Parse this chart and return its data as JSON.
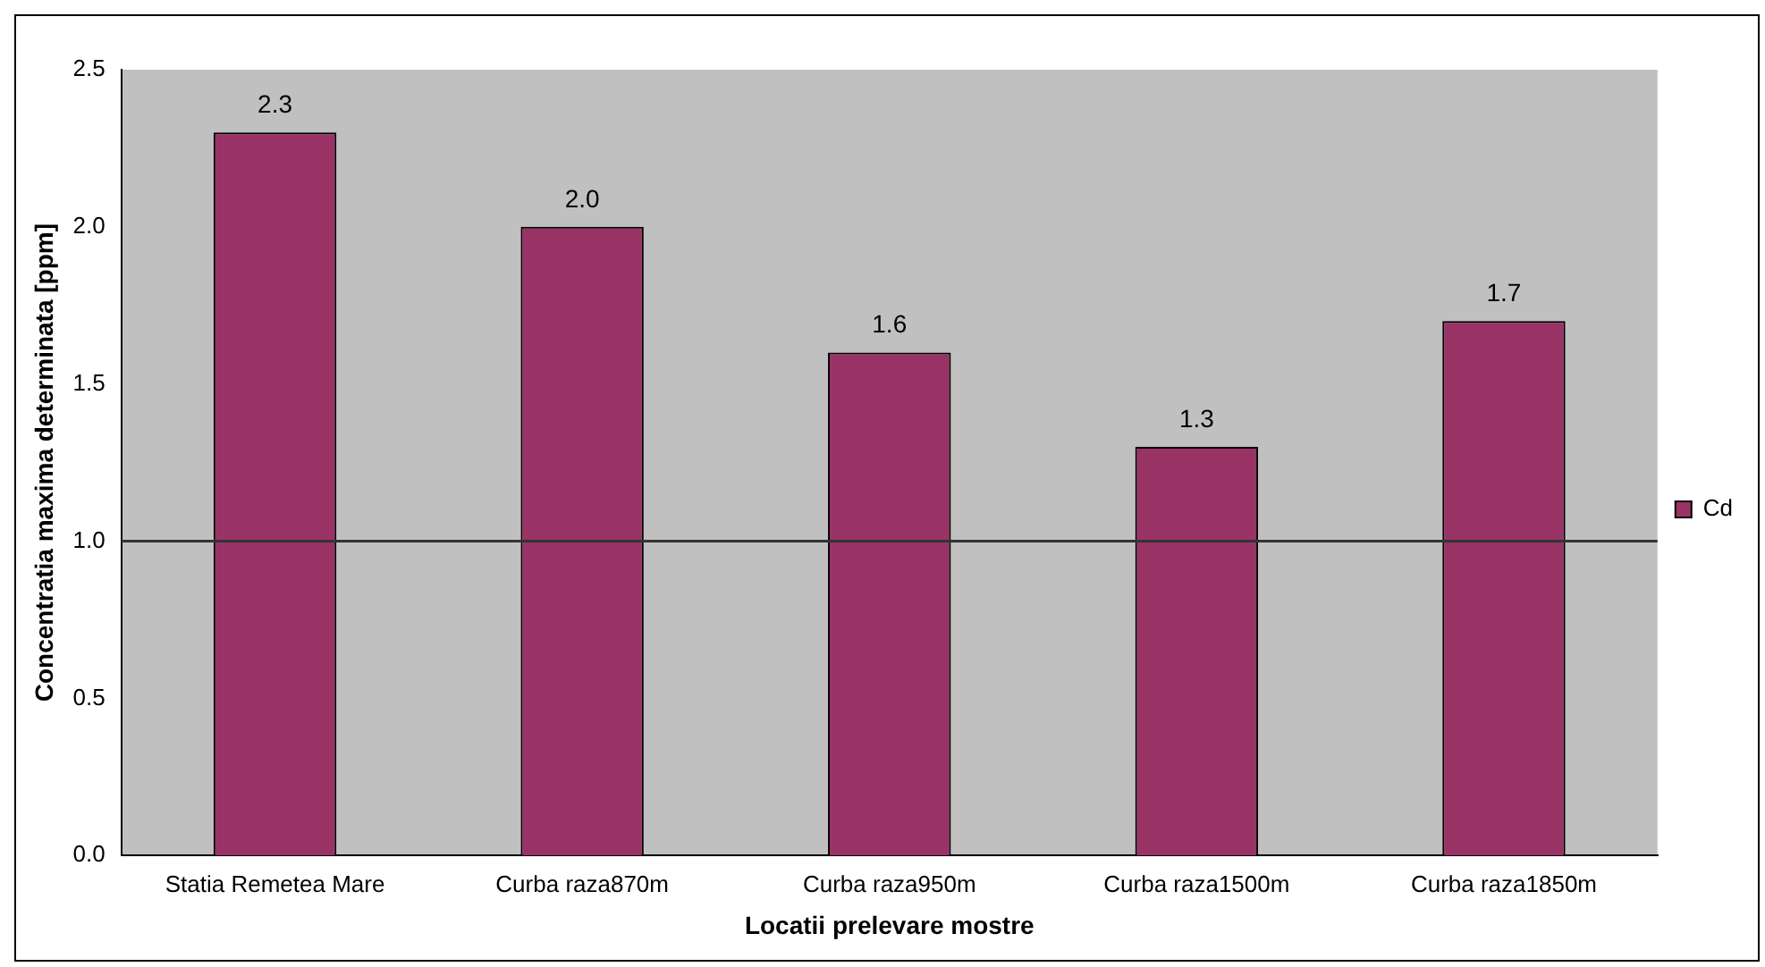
{
  "chart_data": {
    "type": "bar",
    "xlabel": "Locatii prelevare mostre",
    "ylabel": "Concentratia maxima determinata [ppm]",
    "categories": [
      "Statia Remetea Mare",
      "Curba raza870m",
      "Curba raza950m",
      "Curba raza1500m",
      "Curba raza1850m"
    ],
    "series": [
      {
        "name": "Cd",
        "color": "#993366",
        "values": [
          2.3,
          2.0,
          1.6,
          1.3,
          1.7
        ],
        "value_labels": [
          "2.3",
          "2.0",
          "1.6",
          "1.3",
          "1.7"
        ]
      }
    ],
    "ylim": [
      0,
      2.5
    ],
    "yticks": [
      {
        "value": 0,
        "label": "0.0"
      },
      {
        "value": 0.5,
        "label": "0.5"
      },
      {
        "value": 1,
        "label": "1.0"
      },
      {
        "value": 1.5,
        "label": "1.5"
      },
      {
        "value": 2,
        "label": "2.0"
      },
      {
        "value": 2.5,
        "label": "2.5"
      }
    ],
    "ref_lines": [
      {
        "axis": "y",
        "value": 1,
        "color": "#333333"
      }
    ],
    "grid": false,
    "legend": "right"
  }
}
